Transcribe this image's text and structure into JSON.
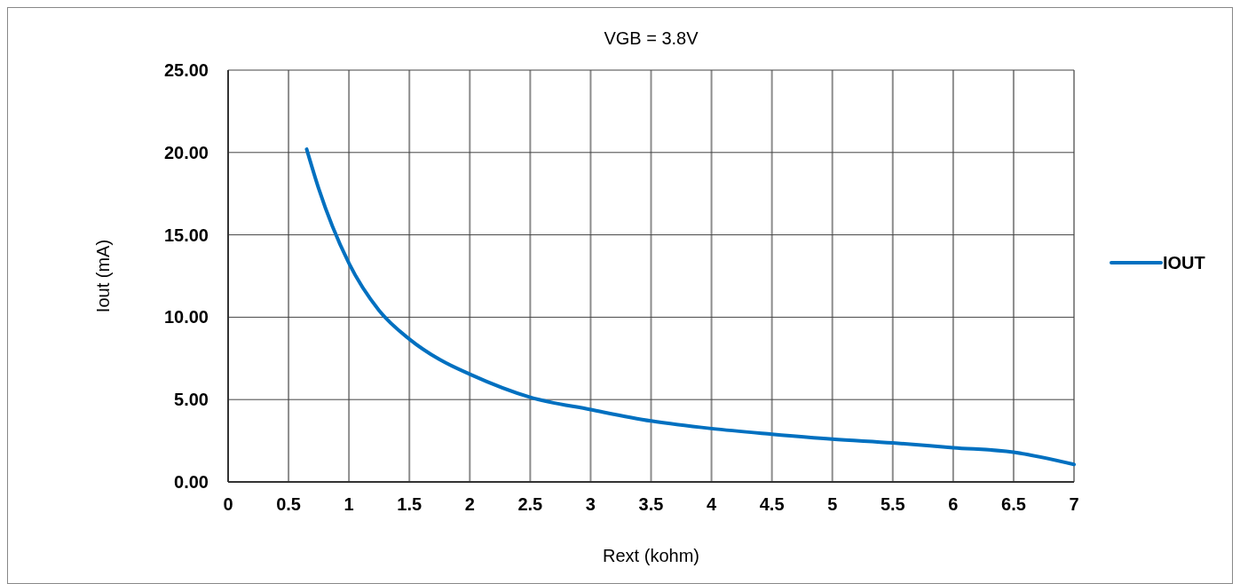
{
  "chart_data": {
    "type": "line",
    "title": "VGB = 3.8V",
    "xlabel": "Rext (kohm)",
    "ylabel": "Iout (mA)",
    "x": [
      0.65,
      0.75,
      1,
      1.25,
      1.5,
      1.75,
      2,
      2.5,
      3,
      3.5,
      4,
      4.5,
      5,
      5.5,
      6,
      6.5,
      7
    ],
    "series": [
      {
        "name": "IOUT",
        "color": "#0070c0",
        "values": [
          20.2,
          17.8,
          13.27,
          10.4,
          8.67,
          7.43,
          6.54,
          5.14,
          4.39,
          3.7,
          3.24,
          2.9,
          2.6,
          2.37,
          2.08,
          1.8,
          1.06
        ]
      }
    ],
    "xlim": [
      0,
      7
    ],
    "xticks": [
      0,
      0.5,
      1,
      1.5,
      2,
      2.5,
      3,
      3.5,
      4,
      4.5,
      5,
      5.5,
      6,
      6.5,
      7
    ],
    "ylim": [
      0,
      25
    ],
    "yticks": [
      {
        "value": 0,
        "label": "0.00"
      },
      {
        "value": 5,
        "label": "5.00"
      },
      {
        "value": 10,
        "label": "10.00"
      },
      {
        "value": 15,
        "label": "15.00"
      },
      {
        "value": 20,
        "label": "20.00"
      },
      {
        "value": 25,
        "label": "25.00"
      }
    ],
    "grid": true,
    "legend": "right",
    "marker": "none",
    "line_style": "solid"
  }
}
